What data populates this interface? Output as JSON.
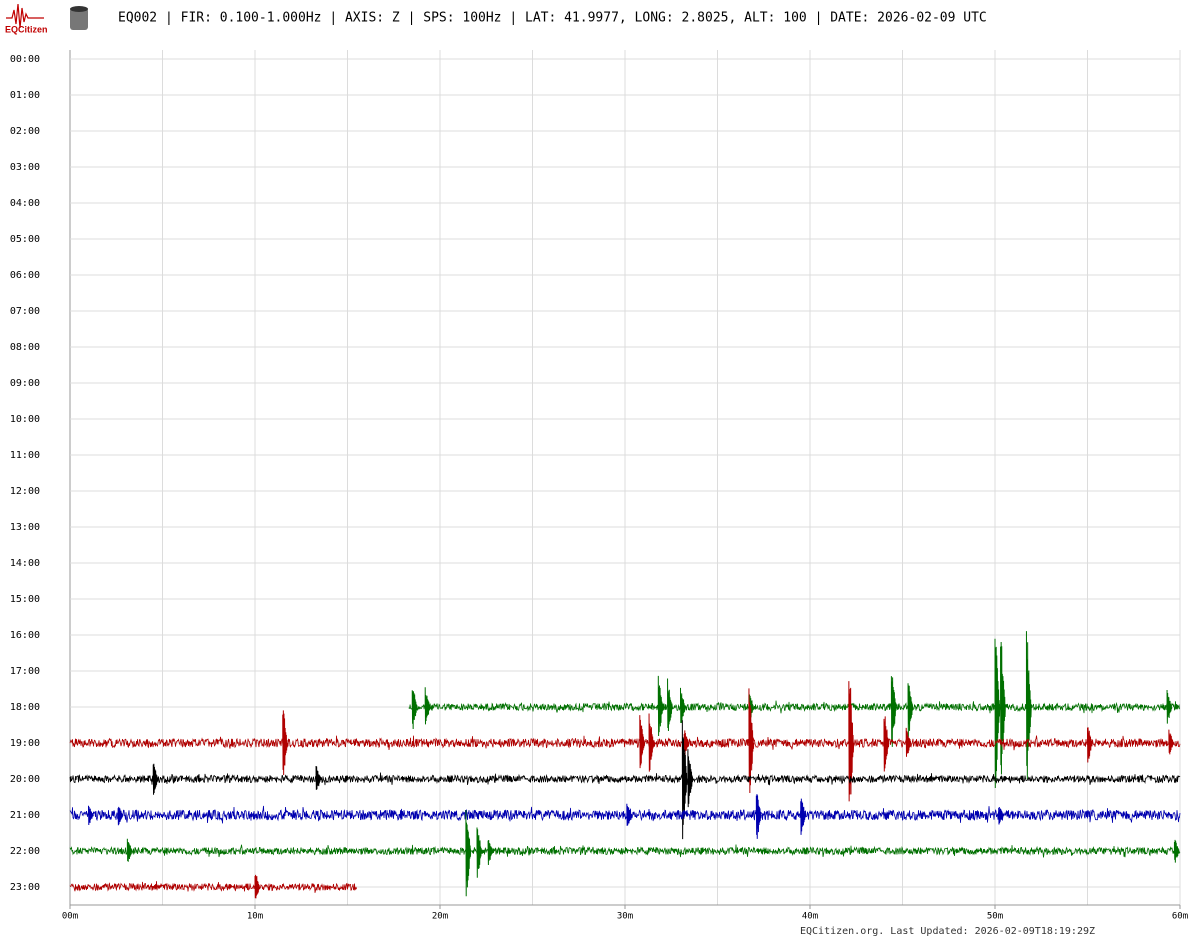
{
  "logo": "EQCitizen",
  "chart_data": {
    "type": "helicorder",
    "title": "EQ002 | FIR: 0.100-1.000Hz | AXIS: Z | SPS: 100Hz | LAT: 41.9977, LONG: 2.8025, ALT: 100 | DATE: 2026-02-09 UTC",
    "footer": "EQCitizen.org. Last Updated: 2026-02-09T18:19:29Z",
    "categories": [
      "00:00",
      "01:00",
      "02:00",
      "03:00",
      "04:00",
      "05:00",
      "06:00",
      "07:00",
      "08:00",
      "09:00",
      "10:00",
      "11:00",
      "12:00",
      "13:00",
      "14:00",
      "15:00",
      "16:00",
      "17:00",
      "18:00",
      "19:00",
      "20:00",
      "21:00",
      "22:00",
      "23:00"
    ],
    "xlim": [
      0,
      60
    ],
    "xticks": [
      {
        "value": 0,
        "label": "00m"
      },
      {
        "value": 10,
        "label": "10m"
      },
      {
        "value": 20,
        "label": "20m"
      },
      {
        "value": 30,
        "label": "30m"
      },
      {
        "value": 40,
        "label": "40m"
      },
      {
        "value": 50,
        "label": "50m"
      },
      {
        "value": 60,
        "label": "60m"
      }
    ],
    "grid": true,
    "traces": [
      {
        "row": 18,
        "color": "#007000",
        "x": [
          18.3,
          60
        ],
        "noise": 0.1,
        "spikes": [
          [
            18.5,
            0.7
          ],
          [
            19.2,
            0.6
          ],
          [
            31.8,
            0.9
          ],
          [
            32.3,
            0.8
          ],
          [
            33,
            0.6
          ],
          [
            36.7,
            0.5
          ],
          [
            44.4,
            1.3
          ],
          [
            45.3,
            0.9
          ],
          [
            50,
            2.5
          ],
          [
            50.3,
            2.3
          ],
          [
            51.7,
            2.4
          ],
          [
            59.3,
            0.5
          ]
        ]
      },
      {
        "row": 19,
        "color": "#b00000",
        "x": [
          0,
          60
        ],
        "noise": 0.12,
        "spikes": [
          [
            11.5,
            1.1
          ],
          [
            30.8,
            0.8
          ],
          [
            31.3,
            0.9
          ],
          [
            33.2,
            0.4
          ],
          [
            36.7,
            1.6
          ],
          [
            42.1,
            2.5
          ],
          [
            44,
            1
          ],
          [
            45.2,
            0.5
          ],
          [
            55,
            0.6
          ],
          [
            59.4,
            0.4
          ]
        ]
      },
      {
        "row": 20,
        "color": "#000000",
        "x": [
          0,
          60
        ],
        "noise": 0.1,
        "spikes": [
          [
            4.5,
            0.5
          ],
          [
            13.3,
            0.4
          ],
          [
            33.1,
            1.8
          ],
          [
            33.4,
            0.9
          ]
        ]
      },
      {
        "row": 21,
        "color": "#0000b0",
        "x": [
          0,
          60
        ],
        "noise": 0.14,
        "spikes": [
          [
            1,
            0.3
          ],
          [
            2.6,
            0.3
          ],
          [
            30.1,
            0.4
          ],
          [
            37.1,
            0.8
          ],
          [
            39.5,
            0.6
          ],
          [
            50.2,
            0.3
          ]
        ]
      },
      {
        "row": 22,
        "color": "#007000",
        "x": [
          0,
          60
        ],
        "noise": 0.1,
        "spikes": [
          [
            3.1,
            0.4
          ],
          [
            21.4,
            1.4
          ],
          [
            22,
            0.8
          ],
          [
            22.6,
            0.4
          ],
          [
            59.7,
            0.4
          ]
        ]
      },
      {
        "row": 23,
        "color": "#b00000",
        "x": [
          0,
          15.5
        ],
        "noise": 0.1,
        "spikes": [
          [
            10,
            0.5
          ]
        ]
      }
    ]
  }
}
